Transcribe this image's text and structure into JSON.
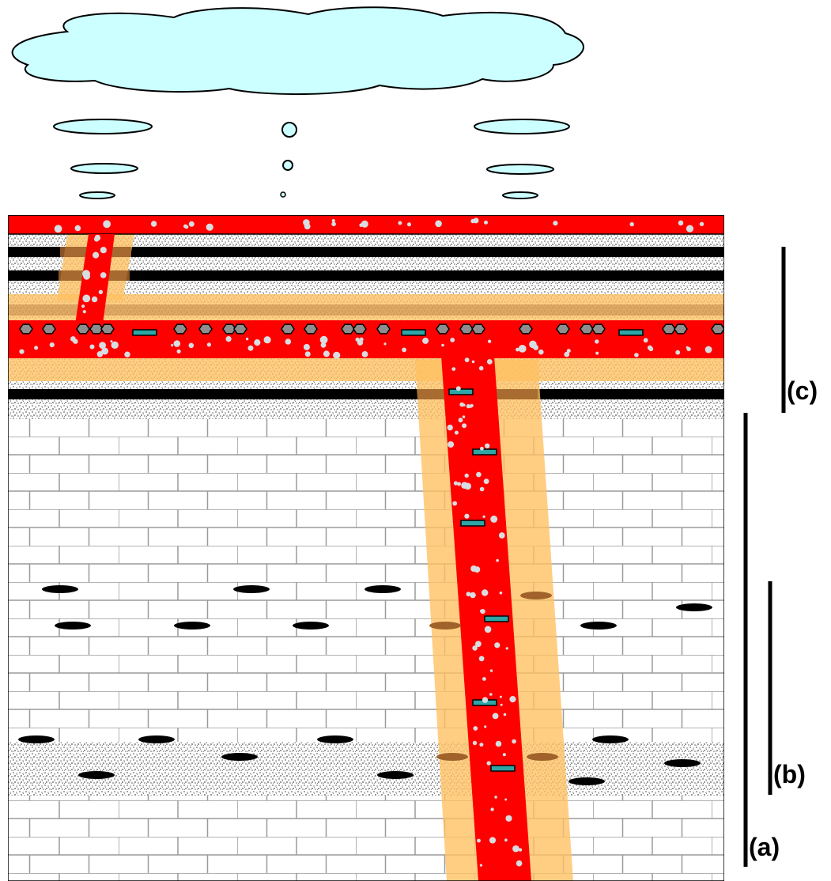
{
  "labels": {
    "a": "(a)",
    "b": "(b)",
    "c": "(c)"
  },
  "colors": {
    "cloud": "#ccffff",
    "magma": "#ff0000",
    "halo": "#ffc060",
    "halo_dark": "#a0622a",
    "shale": "#000000",
    "sandstone": "#bdbdbd",
    "limestone_grid": "#9a9a9a",
    "crystal": "#2ea6a6",
    "mineral_hex": "#8e8e8e",
    "bubble": "#d7dde0"
  },
  "icons": {
    "cloud": "cloud-icon",
    "raindrop": "raindrop-icon",
    "hexagon": "hexagon-crystal-icon",
    "chert_nodule": "chert-nodule-icon"
  }
}
